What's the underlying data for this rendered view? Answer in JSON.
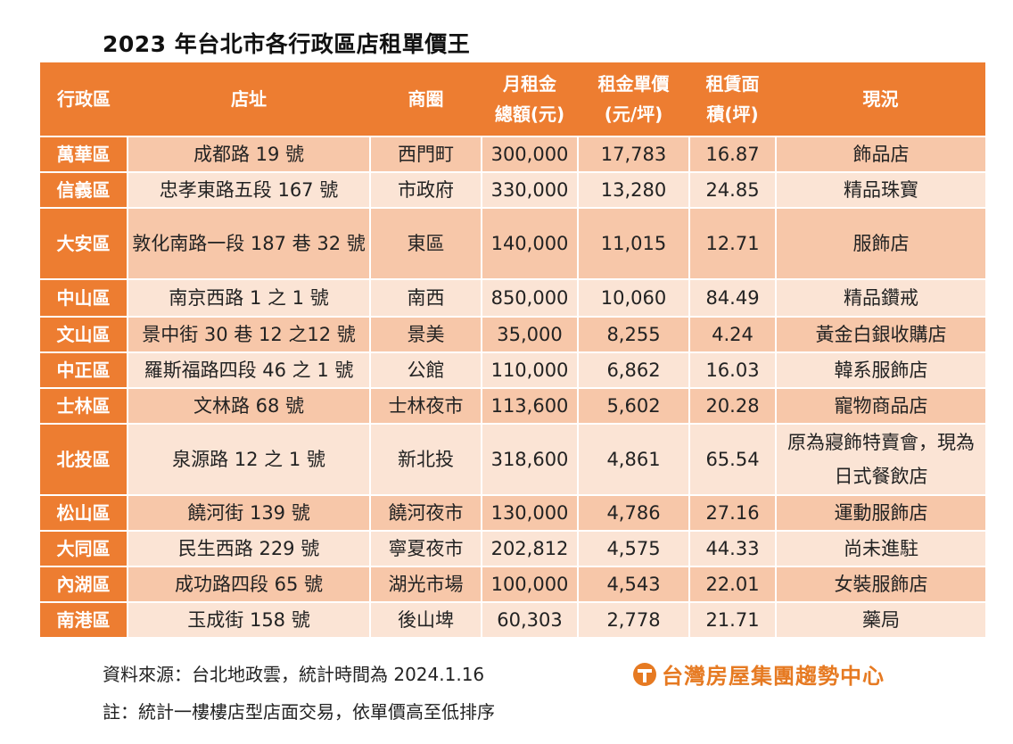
{
  "title": "2023 年台北市各行政區店租單價王",
  "chart_data": {
    "type": "table",
    "title": "2023 年台北市各行政區店租單價王",
    "headers": [
      "行政區",
      "店址",
      "商圈",
      "月租金\n總額(元)",
      "租金單價\n(元/坪)",
      "租賃面\n積(坪)",
      "現況"
    ],
    "header_lines": [
      [
        "行政區"
      ],
      [
        "店址"
      ],
      [
        "商圈"
      ],
      [
        "月租金",
        "總額(元)"
      ],
      [
        "租金單價",
        "(元/坪)"
      ],
      [
        "租賃面",
        "積(坪)"
      ],
      [
        "現況"
      ]
    ],
    "rows": [
      [
        "萬華區",
        "成都路 19 號",
        "西門町",
        "300,000",
        "17,783",
        "16.87",
        "飾品店"
      ],
      [
        "信義區",
        "忠孝東路五段 167 號",
        "市政府",
        "330,000",
        "13,280",
        "24.85",
        "精品珠寶"
      ],
      [
        "大安區",
        "敦化南路一段 187 巷 32 號",
        "東區",
        "140,000",
        "11,015",
        "12.71",
        "服飾店"
      ],
      [
        "中山區",
        "南京西路 1 之 1 號",
        "南西",
        "850,000",
        "10,060",
        "84.49",
        "精品鑽戒"
      ],
      [
        "文山區",
        "景中街 30 巷 12 之12 號",
        "景美",
        "35,000",
        "8,255",
        "4.24",
        "黃金白銀收購店"
      ],
      [
        "中正區",
        "羅斯福路四段 46 之 1 號",
        "公館",
        "110,000",
        "6,862",
        "16.03",
        "韓系服飾店"
      ],
      [
        "士林區",
        "文林路 68 號",
        "士林夜市",
        "113,600",
        "5,602",
        "20.28",
        "寵物商品店"
      ],
      [
        "北投區",
        "泉源路 12 之 1 號",
        "新北投",
        "318,600",
        "4,861",
        "65.54",
        "原為寢飾特賣會，現為日式餐飲店"
      ],
      [
        "松山區",
        "饒河街 139 號",
        "饒河夜市",
        "130,000",
        "4,786",
        "27.16",
        "運動服飾店"
      ],
      [
        "大同區",
        "民生西路 229 號",
        "寧夏夜市",
        "202,812",
        "4,575",
        "44.33",
        "尚未進駐"
      ],
      [
        "內湖區",
        "成功路四段 65 號",
        "湖光市場",
        "100,000",
        "4,543",
        "22.01",
        "女裝服飾店"
      ],
      [
        "南港區",
        "玉成街 158 號",
        "後山埤",
        "60,303",
        "2,778",
        "21.71",
        "藥局"
      ]
    ]
  },
  "notes": {
    "source": "資料來源：台北地政雲，統計時間為 2024.1.16",
    "remark": "註：統計一樓樓店型店面交易，依單價高至低排序"
  },
  "logo": {
    "text": "台灣房屋集團趨勢中心"
  },
  "colors": {
    "header": "#ed7d31",
    "row_dark": "#f7c7a9",
    "row_light": "#fbe4d5",
    "logo": "#e67a22"
  }
}
